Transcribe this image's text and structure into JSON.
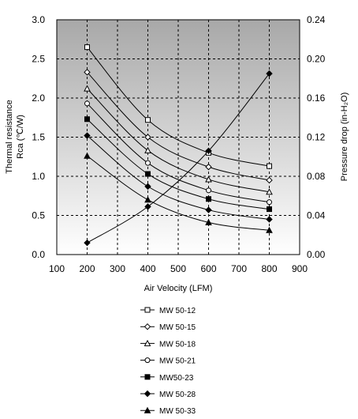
{
  "chart_data": {
    "type": "line",
    "x_axis": {
      "label": "Air Velocity (LFM)",
      "range": [
        100,
        900
      ],
      "ticks": [
        100,
        200,
        300,
        400,
        500,
        600,
        700,
        800,
        900
      ]
    },
    "y_axis_left": {
      "label_lines": [
        "Thermal resistance",
        "Rca (℃/W)"
      ],
      "range": [
        0.0,
        3.0
      ],
      "ticks": [
        "0.0",
        "0.5",
        "1.0",
        "1.5",
        "2.0",
        "2.5",
        "3.0"
      ]
    },
    "y_axis_right": {
      "label": "Pressure drop (in-H₂O)",
      "range": [
        0.0,
        0.24
      ],
      "ticks": [
        "0.00",
        "0.04",
        "0.08",
        "0.12",
        "0.16",
        "0.20",
        "0.24"
      ]
    },
    "grid": "dashed",
    "plot_background": {
      "top": "#a8a8a8",
      "bottom": "#ffffff"
    },
    "series": [
      {
        "name": "MW 50-12",
        "marker": "square-open",
        "axis": "left",
        "x": [
          200,
          400,
          600,
          800
        ],
        "y": [
          2.65,
          1.72,
          1.3,
          1.13
        ]
      },
      {
        "name": "MW 50-15",
        "marker": "diamond-open",
        "axis": "left",
        "x": [
          200,
          400,
          600,
          800
        ],
        "y": [
          2.33,
          1.5,
          1.12,
          0.95
        ]
      },
      {
        "name": "MW 50-18",
        "marker": "triangle-open",
        "axis": "left",
        "x": [
          200,
          400,
          600,
          800
        ],
        "y": [
          2.12,
          1.33,
          0.96,
          0.8
        ]
      },
      {
        "name": "MW 50-21",
        "marker": "circle-open",
        "axis": "left",
        "x": [
          200,
          400,
          600,
          800
        ],
        "y": [
          1.93,
          1.17,
          0.82,
          0.67
        ]
      },
      {
        "name": "MW50-23",
        "marker": "square-filled",
        "axis": "left",
        "x": [
          200,
          400,
          600,
          800
        ],
        "y": [
          1.73,
          1.03,
          0.71,
          0.58
        ]
      },
      {
        "name": "MW 50-28",
        "marker": "diamond-filled",
        "axis": "left",
        "x": [
          200,
          400,
          600,
          800
        ],
        "y": [
          1.52,
          0.87,
          0.57,
          0.45
        ]
      },
      {
        "name": "MW 50-33",
        "marker": "triangle-filled",
        "axis": "left",
        "x": [
          200,
          400,
          600,
          800
        ],
        "y": [
          1.26,
          0.7,
          0.41,
          0.31
        ]
      },
      {
        "name": "",
        "marker": "diamond-filled",
        "axis": "right",
        "x": [
          200,
          400,
          600,
          800
        ],
        "y": [
          0.012,
          0.049,
          0.106,
          0.185
        ]
      }
    ]
  }
}
